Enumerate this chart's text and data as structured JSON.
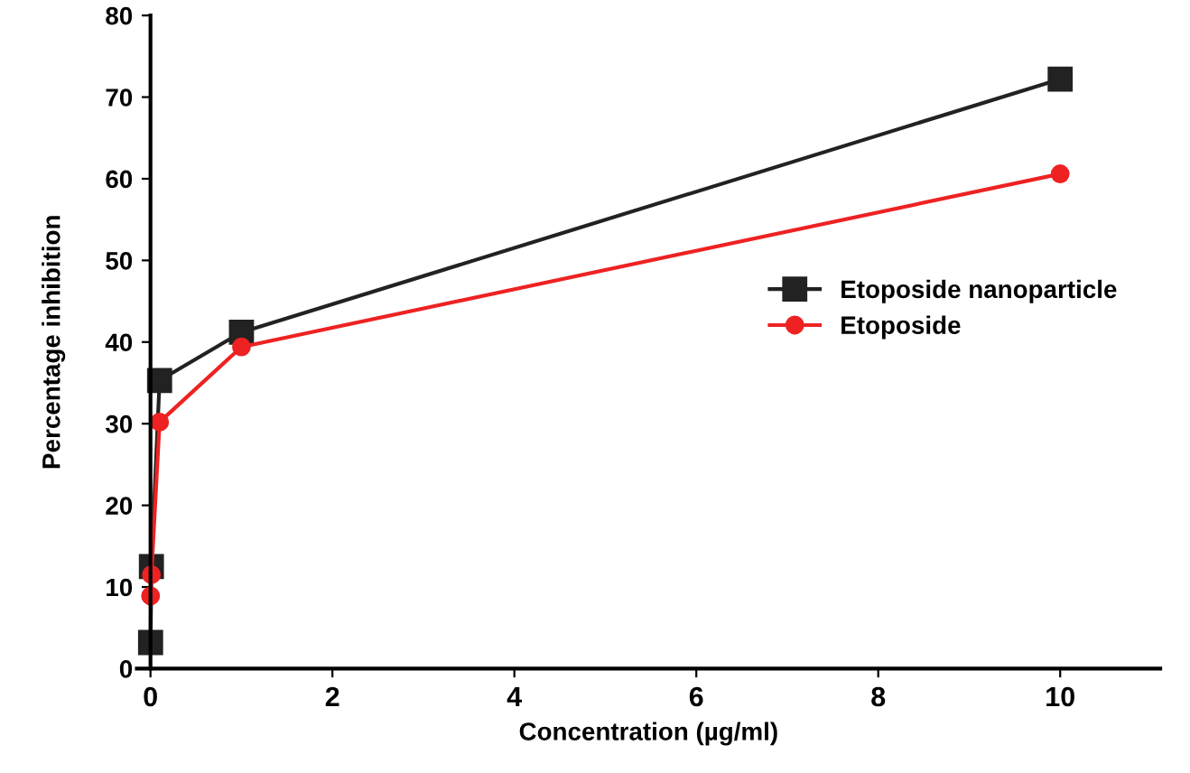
{
  "chart_data": {
    "type": "line",
    "xlabel": "Concentration (µg/ml)",
    "ylabel": "Percentage inhibition",
    "x": [
      0.001,
      0.01,
      0.1,
      1,
      10
    ],
    "series": [
      {
        "name": "Etoposide nanoparticle",
        "color": "#222222",
        "marker": "square",
        "values": [
          3.2,
          12.5,
          35.3,
          41.2,
          72.2
        ]
      },
      {
        "name": "Etoposide",
        "color": "#ee2222",
        "marker": "circle",
        "values": [
          8.9,
          11.5,
          30.2,
          39.4,
          60.6
        ]
      }
    ],
    "xlim": [
      -0.15,
      11.1
    ],
    "xticks": [
      0,
      2,
      4,
      6,
      8,
      10
    ],
    "ylim": [
      0,
      80
    ],
    "yticks": [
      0,
      10,
      20,
      30,
      40,
      50,
      60,
      70,
      80
    ],
    "grid": false,
    "legend": "right",
    "line_style": "solid"
  }
}
